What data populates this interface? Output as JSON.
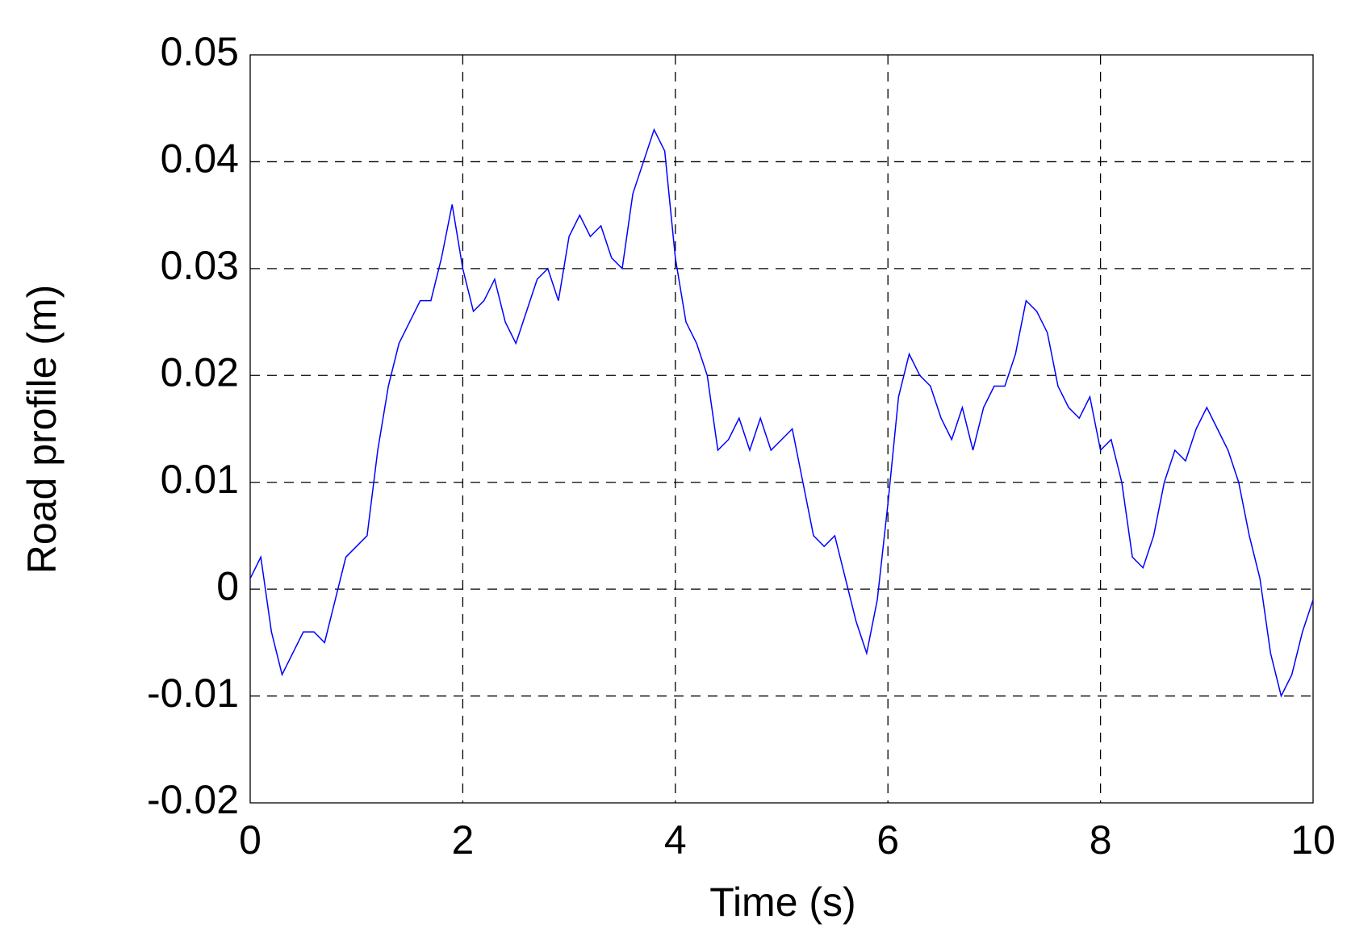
{
  "chart_data": {
    "type": "line",
    "xlabel": "Time (s)",
    "ylabel": "Road profile (m)",
    "x": [
      0,
      0.1,
      0.2,
      0.3,
      0.4,
      0.5,
      0.6,
      0.7,
      0.8,
      0.9,
      1.0,
      1.1,
      1.2,
      1.3,
      1.4,
      1.5,
      1.6,
      1.7,
      1.8,
      1.9,
      2.0,
      2.1,
      2.2,
      2.3,
      2.4,
      2.5,
      2.6,
      2.7,
      2.8,
      2.9,
      3.0,
      3.1,
      3.2,
      3.3,
      3.4,
      3.5,
      3.6,
      3.7,
      3.8,
      3.9,
      4.0,
      4.1,
      4.2,
      4.3,
      4.4,
      4.5,
      4.6,
      4.7,
      4.8,
      4.9,
      5.0,
      5.1,
      5.2,
      5.3,
      5.4,
      5.5,
      5.6,
      5.7,
      5.8,
      5.9,
      6.0,
      6.1,
      6.2,
      6.3,
      6.4,
      6.5,
      6.6,
      6.7,
      6.8,
      6.9,
      7.0,
      7.1,
      7.2,
      7.3,
      7.4,
      7.5,
      7.6,
      7.7,
      7.8,
      7.9,
      8.0,
      8.1,
      8.2,
      8.3,
      8.4,
      8.5,
      8.6,
      8.7,
      8.8,
      8.9,
      9.0,
      9.1,
      9.2,
      9.3,
      9.4,
      9.5,
      9.6,
      9.7,
      9.8,
      9.9,
      10.0
    ],
    "series": [
      {
        "color": "#0000ff",
        "values": [
          0.001,
          0.003,
          -0.004,
          -0.008,
          -0.006,
          -0.004,
          -0.004,
          -0.005,
          -0.001,
          0.003,
          0.004,
          0.005,
          0.013,
          0.019,
          0.023,
          0.025,
          0.027,
          0.027,
          0.031,
          0.036,
          0.03,
          0.026,
          0.027,
          0.029,
          0.025,
          0.023,
          0.026,
          0.029,
          0.03,
          0.027,
          0.033,
          0.035,
          0.033,
          0.034,
          0.031,
          0.03,
          0.037,
          0.04,
          0.043,
          0.041,
          0.031,
          0.025,
          0.023,
          0.02,
          0.013,
          0.014,
          0.016,
          0.013,
          0.016,
          0.013,
          0.014,
          0.015,
          0.01,
          0.005,
          0.004,
          0.005,
          0.001,
          -0.003,
          -0.006,
          -0.001,
          0.008,
          0.018,
          0.022,
          0.02,
          0.019,
          0.016,
          0.014,
          0.017,
          0.013,
          0.017,
          0.019,
          0.019,
          0.022,
          0.027,
          0.026,
          0.024,
          0.019,
          0.017,
          0.016,
          0.018,
          0.013,
          0.014,
          0.01,
          0.003,
          0.002,
          0.005,
          0.01,
          0.013,
          0.012,
          0.015,
          0.017,
          0.015,
          0.013,
          0.01,
          0.005,
          0.001,
          -0.006,
          -0.01,
          -0.008,
          -0.004,
          -0.001
        ]
      }
    ],
    "xlim": [
      0,
      10
    ],
    "xticks": [
      0,
      2,
      4,
      6,
      8,
      10
    ],
    "ylim": [
      -0.02,
      0.05
    ],
    "yticks": [
      -0.02,
      -0.01,
      0,
      0.01,
      0.02,
      0.03,
      0.04,
      0.05
    ],
    "grid": true
  }
}
